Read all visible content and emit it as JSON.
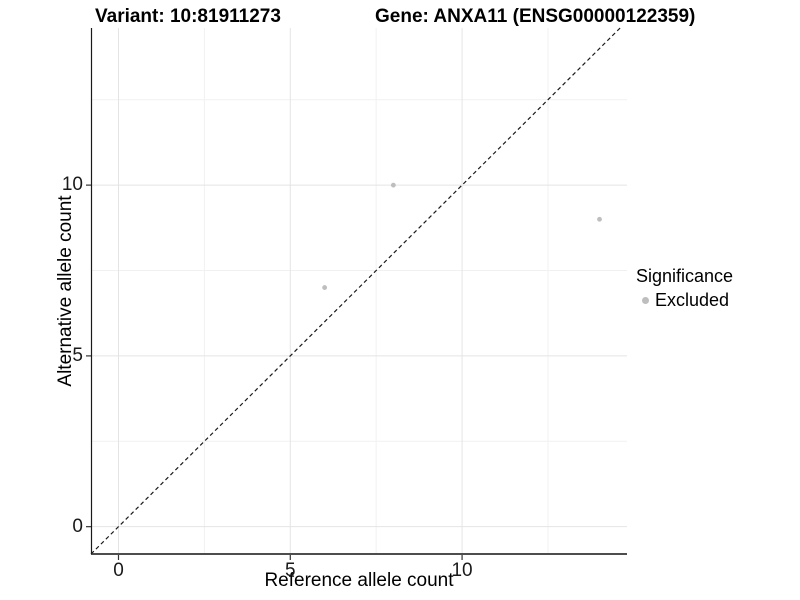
{
  "titles": {
    "variant": "Variant: 10:81911273",
    "gene": "Gene: ANXA11 (ENSG00000122359)"
  },
  "axes": {
    "x_label": "Reference allele count",
    "y_label": "Alternative allele count"
  },
  "legend": {
    "title": "Significance",
    "items": [
      {
        "label": "Excluded",
        "color": "#bebebe"
      }
    ]
  },
  "chart_data": {
    "type": "scatter",
    "title": "Variant: 10:81911273 | Gene: ANXA11 (ENSG00000122359)",
    "xlabel": "Reference allele count",
    "ylabel": "Alternative allele count",
    "series": [
      {
        "name": "Excluded",
        "color": "#bebebe",
        "points": [
          {
            "x": 6,
            "y": 7
          },
          {
            "x": 8,
            "y": 10
          },
          {
            "x": 14,
            "y": 9
          }
        ]
      }
    ],
    "reference_line": {
      "kind": "identity y=x",
      "style": "dashed",
      "color": "#1a1a1a"
    },
    "xlim": [
      -0.8,
      14.8
    ],
    "ylim": [
      -0.8,
      14.6
    ],
    "x_ticks": [
      0,
      5,
      10
    ],
    "y_ticks": [
      0,
      5,
      10
    ],
    "x_minor_ticks": [
      2.5,
      7.5,
      12.5
    ],
    "y_minor_ticks": [
      2.5,
      7.5,
      12.5
    ],
    "grid": true,
    "legend_position": "right"
  },
  "colors": {
    "point": "#bebebe",
    "grid_major": "#e4e4e4",
    "grid_minor": "#f1f1f1",
    "axis_line_left": "#1a1a1a",
    "axis_line_bottom": "#4d4d4d",
    "tick_mark": "#333333",
    "text": "#000000",
    "background": "#ffffff"
  }
}
